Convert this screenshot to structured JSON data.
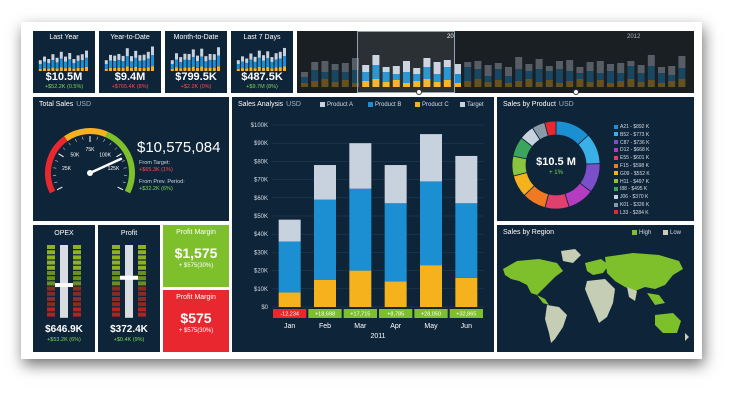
{
  "kpis": [
    {
      "title": "Last Year",
      "value": "$10.5M",
      "delta": "+$52.2K (0.5%)",
      "delta_color": "green"
    },
    {
      "title": "Year-to-Date",
      "value": "$9.4M",
      "delta": "+$765.4K (8%)",
      "delta_color": "red"
    },
    {
      "title": "Month-to-Date",
      "value": "$799.5K",
      "delta": "+$2.2K (0%)",
      "delta_color": "red"
    },
    {
      "title": "Last 7 Days",
      "value": "$487.5K",
      "delta": "+$9.7M (8%)",
      "delta_color": "green"
    }
  ],
  "timeline": {
    "year_left": "20",
    "year_right": "2012"
  },
  "total_sales": {
    "title": "Total Sales",
    "unit": "USD",
    "value": "$10,575,084",
    "from_target_label": "From Target:",
    "from_target_value": "+$65.3K (1%)",
    "from_prev_label": "From Prev. Period:",
    "from_prev_value": "+$32.2K (6%)",
    "gauge_labels": [
      "25K",
      "50K",
      "75K",
      "100K",
      "125K"
    ],
    "gauge_fraction": 0.78
  },
  "sales_analysis": {
    "title": "Sales Analysis",
    "unit": "USD",
    "legend": [
      {
        "name": "Product A",
        "color": "#c8d2de"
      },
      {
        "name": "Product B",
        "color": "#1b8fd2"
      },
      {
        "name": "Product C",
        "color": "#f5b21c"
      },
      {
        "name": "Target",
        "color": "#c8d2de"
      }
    ],
    "year": "2011"
  },
  "chart_data": {
    "type": "bar",
    "categories": [
      "Jan",
      "Feb",
      "Mar",
      "Apr",
      "May",
      "Jun"
    ],
    "series": [
      {
        "name": "Product C",
        "values": [
          8,
          15,
          20,
          14,
          23,
          16
        ]
      },
      {
        "name": "Product B",
        "values": [
          28,
          44,
          45,
          43,
          46,
          41
        ]
      },
      {
        "name": "Product A",
        "values": [
          12,
          19,
          25,
          21,
          26,
          26
        ]
      }
    ],
    "variance_labels": [
      "-12,234",
      "+18,698",
      "+17,715",
      "+8,785",
      "+28,050",
      "+32,865"
    ],
    "variance_colors": [
      "red",
      "green",
      "green",
      "green",
      "green",
      "green"
    ],
    "yticks": [
      "$0",
      "$10K",
      "$20K",
      "$30K",
      "$40K",
      "$50K",
      "$60K",
      "$70K",
      "$80K",
      "$90K",
      "$100K"
    ],
    "ylim": [
      0,
      100
    ],
    "xlabel": "2011",
    "title": "Sales Analysis"
  },
  "sales_by_product": {
    "title": "Sales by Product",
    "unit": "USD",
    "center_value": "$10.5 M",
    "center_delta": "+ 1%",
    "items": [
      {
        "label": "A21 - $892 K",
        "value": 892,
        "color": "#1b8fd2"
      },
      {
        "label": "B52 - $773 K",
        "value": 773,
        "color": "#3ab0e8"
      },
      {
        "label": "C87 - $736 K",
        "value": 736,
        "color": "#7b4fc9"
      },
      {
        "label": "D12 - $668 K",
        "value": 668,
        "color": "#b43cc0"
      },
      {
        "label": "E55 - $601 K",
        "value": 601,
        "color": "#e2406c"
      },
      {
        "label": "F15 - $598 K",
        "value": 598,
        "color": "#f07a21"
      },
      {
        "label": "G09 - $552 K",
        "value": 552,
        "color": "#f5b21c"
      },
      {
        "label": "H11 - $497 K",
        "value": 497,
        "color": "#8bc43f"
      },
      {
        "label": "I88 - $495 K",
        "value": 495,
        "color": "#3ca55c"
      },
      {
        "label": "J06 - $370 K",
        "value": 370,
        "color": "#c8d2de"
      },
      {
        "label": "K01 - $326 K",
        "value": 326,
        "color": "#8a99a8"
      },
      {
        "label": "L33 - $284 K",
        "value": 284,
        "color": "#e8272e"
      }
    ]
  },
  "sales_by_region": {
    "title": "Sales by Region",
    "legend": [
      {
        "name": "High",
        "color": "#7dc02b"
      },
      {
        "name": "Low",
        "color": "#c5cdb5"
      }
    ]
  },
  "opex": {
    "title": "OPEX",
    "value": "$646.9K",
    "delta": "+$53.2K (6%)",
    "fraction": 0.45
  },
  "profit": {
    "title": "Profit",
    "value": "$372.4K",
    "delta": "+$0.4K (9%)",
    "fraction": 0.55
  },
  "profit_margin_1": {
    "title": "Profit Margin",
    "value": "$1,575",
    "delta": "+ $575(30%)"
  },
  "profit_margin_2": {
    "title": "Profit Margin",
    "value": "$575",
    "delta": "+ $575(30%)"
  }
}
